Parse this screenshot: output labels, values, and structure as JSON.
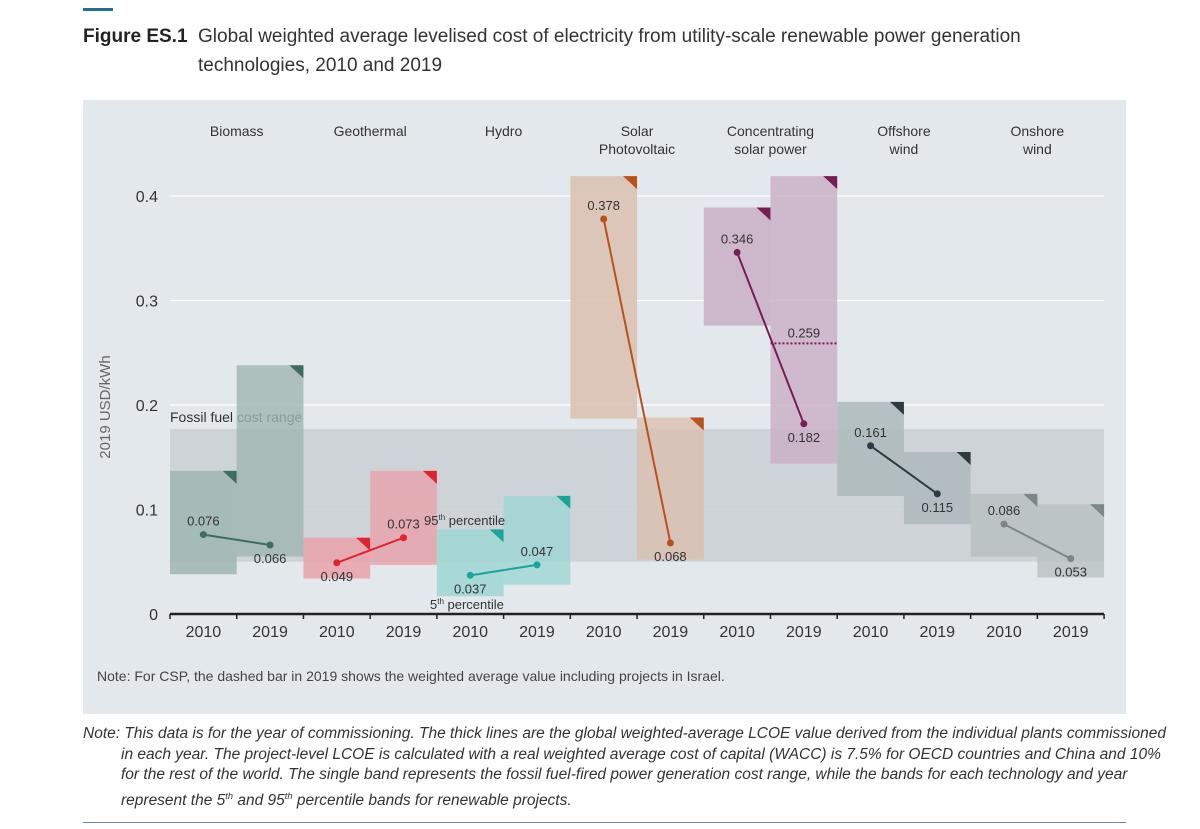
{
  "figure": {
    "label": "Figure ES.1",
    "title_line1": "Global weighted average levelised cost of electricity from utility-scale renewable power generation",
    "title_line2": "technologies, 2010 and 2019"
  },
  "chart_data": {
    "type": "range-band-line",
    "ylabel": "2019 USD/kWh",
    "ylim": [
      0,
      0.42
    ],
    "yticks": [
      "0",
      "0.1",
      "0.2",
      "0.3",
      "0.4"
    ],
    "ytick_values": [
      0,
      0.1,
      0.2,
      0.3,
      0.4
    ],
    "grid": true,
    "years": [
      "2010",
      "2019"
    ],
    "fossil_range": {
      "label": "Fossil fuel cost range",
      "low": 0.05,
      "high": 0.177,
      "color": "#c9cfd2"
    },
    "percentile_labels": {
      "p95_num": "95",
      "p95_sup": "th",
      "p95_text": " percentile",
      "p5_num": "5",
      "p5_sup": "th",
      "p5_text": " percentile"
    },
    "technologies": [
      {
        "name_line1": "Biomass",
        "name_line2": "",
        "color": "#3e6d60",
        "band_color": "#9fb5b1",
        "values": [
          0.076,
          0.066
        ],
        "labels": [
          "0.076",
          "0.066"
        ],
        "p5": [
          0.038,
          0.055
        ],
        "p95": [
          0.137,
          0.238
        ]
      },
      {
        "name_line1": "Geothermal",
        "name_line2": "",
        "color": "#e0242e",
        "band_color": "#e8a1aa",
        "values": [
          0.049,
          0.073
        ],
        "labels": [
          "0.049",
          "0.073"
        ],
        "p5": [
          0.034,
          0.047
        ],
        "p95": [
          0.073,
          0.137
        ]
      },
      {
        "name_line1": "Hydro",
        "name_line2": "",
        "color": "#1aa59b",
        "band_color": "#9dd6d4",
        "values": [
          0.037,
          0.047
        ],
        "labels": [
          "0.037",
          "0.047"
        ],
        "p5": [
          0.017,
          0.028
        ],
        "p95": [
          0.081,
          0.113
        ]
      },
      {
        "name_line1": "Solar",
        "name_line2": "Photovoltaic",
        "color": "#b8511a",
        "band_color": "#d9bfb0",
        "values": [
          0.378,
          0.068
        ],
        "labels": [
          "0.378",
          "0.068"
        ],
        "p5": [
          0.187,
          0.052
        ],
        "p95": [
          0.419,
          0.188
        ]
      },
      {
        "name_line1": "Concentrating",
        "name_line2": "solar power",
        "color": "#7a1d52",
        "band_color": "#c9aec5",
        "values": [
          0.346,
          0.182
        ],
        "labels": [
          "0.346",
          "0.182"
        ],
        "p5": [
          0.276,
          0.144
        ],
        "p95": [
          0.389,
          0.419
        ],
        "dashed_2019": {
          "value": 0.259,
          "label": "0.259"
        }
      },
      {
        "name_line1": "Offshore",
        "name_line2": "wind",
        "color": "#2e3a40",
        "band_color": "#adb8bc",
        "values": [
          0.161,
          0.115
        ],
        "labels": [
          "0.161",
          "0.115"
        ],
        "p5": [
          0.113,
          0.086
        ],
        "p95": [
          0.203,
          0.155
        ]
      },
      {
        "name_line1": "Onshore",
        "name_line2": "wind",
        "color": "#7d8787",
        "band_color": "#b9c0c1",
        "values": [
          0.086,
          0.053
        ],
        "labels": [
          "0.086",
          "0.053"
        ],
        "p5": [
          0.055,
          0.035
        ],
        "p95": [
          0.115,
          0.105
        ]
      }
    ],
    "chart_note": "Note: For CSP, the dashed bar in 2019 shows the weighted average value including projects in Israel."
  },
  "footnote": {
    "prefix": "Note:",
    "text": " This data is for the year of commissioning. The thick lines are the global weighted-average LCOE value derived from the individual plants commissioned in each year. The project-level LCOE is calculated with a real weighted average cost of capital (WACC) is 7.5% for OECD countries and China and 10% for the rest of the world. The single band represents the fossil fuel-fired power generation cost range, while the bands for each technology and year represent the 5",
    "sup": "th",
    "text2": " and 95",
    "sup2": "th",
    "text3": " percentile bands for renewable projects."
  }
}
